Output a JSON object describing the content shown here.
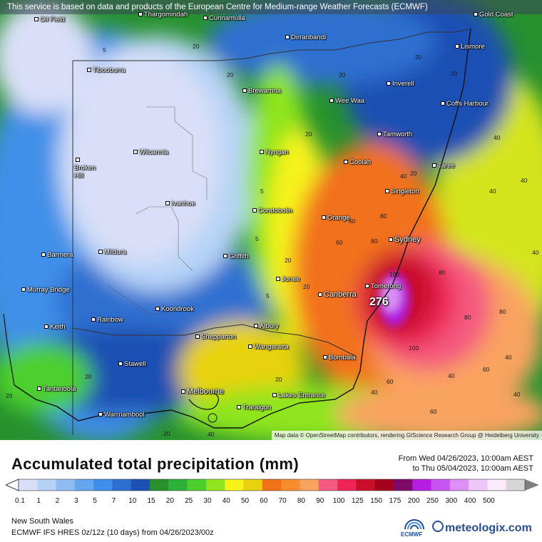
{
  "banner": "This service is based on data and products of the European Centre for Medium-range Weather Forecasts (ECMWF)",
  "attribution": "Map data © OpenStreetMap contributors, rendering GIScience Research Group @ Heidelberg University",
  "title": "Accumulated total precipitation (mm)",
  "date_from": "From Wed 04/26/2023, 10:00am AEST",
  "date_to": "to Thu 05/04/2023, 10:00am AEST",
  "region": "New South Wales",
  "model": "ECMWF IFS HRES 0z/12z (10 days) from 04/26/2023/00z",
  "brand_ecmwf": "ECMWF",
  "brand_site": "meteologix.com",
  "max_value": "276",
  "legend": {
    "labels": [
      "0.1",
      "1",
      "2",
      "3",
      "5",
      "7",
      "10",
      "15",
      "20",
      "25",
      "30",
      "40",
      "50",
      "60",
      "70",
      "80",
      "90",
      "100",
      "125",
      "150",
      "175",
      "200",
      "250",
      "300",
      "400",
      "500"
    ],
    "colors": [
      "#d9dff7",
      "#b6d3f7",
      "#8fbdf2",
      "#64a6ef",
      "#3f8fe8",
      "#2d6fd0",
      "#1e4fb3",
      "#27912e",
      "#2fb03a",
      "#4ecf2f",
      "#8fe51f",
      "#f7f31a",
      "#e8d10f",
      "#f2711b",
      "#f98c2f",
      "#f9a361",
      "#f45a7f",
      "#ec2555",
      "#c9102b",
      "#a5001e",
      "#7e0b6a",
      "#b31ee0",
      "#c754ee",
      "#dc8ff5",
      "#eec6fa",
      "#fbe9fd",
      "#d6d6d6"
    ]
  },
  "cities": [
    {
      "name": "Oil Field"
    },
    {
      "name": "Thargomindah"
    },
    {
      "name": "Cunnamulla"
    },
    {
      "name": "Gold Coast"
    },
    {
      "name": "Lismore"
    },
    {
      "name": "Dirranbandi"
    },
    {
      "name": "Tibooburra"
    },
    {
      "name": "Brewarrina"
    },
    {
      "name": "Inverell"
    },
    {
      "name": "Wee Waa"
    },
    {
      "name": "Coffs Harbour"
    },
    {
      "name": "Tamworth"
    },
    {
      "name": "Wilcannia"
    },
    {
      "name": "Nyngan"
    },
    {
      "name": "Coolah"
    },
    {
      "name": "Broken Hill"
    },
    {
      "name": "Taree"
    },
    {
      "name": "Singleton"
    },
    {
      "name": "Ivanhoe"
    },
    {
      "name": "Condobolin"
    },
    {
      "name": "Orange"
    },
    {
      "name": "Sydney"
    },
    {
      "name": "Barmera"
    },
    {
      "name": "Mildura"
    },
    {
      "name": "Griffith"
    },
    {
      "name": "Junee"
    },
    {
      "name": "Tomerong"
    },
    {
      "name": "Canberra"
    },
    {
      "name": "Murray Bridge"
    },
    {
      "name": "Koondrook"
    },
    {
      "name": "Rainbow"
    },
    {
      "name": "Keith"
    },
    {
      "name": "Shepparton"
    },
    {
      "name": "Albury"
    },
    {
      "name": "Wangaratta"
    },
    {
      "name": "Bombala"
    },
    {
      "name": "Stawell"
    },
    {
      "name": "Tantanoola"
    },
    {
      "name": "Melbourne"
    },
    {
      "name": "Lakes Entrance"
    },
    {
      "name": "Warrnambool"
    },
    {
      "name": "Traralgon"
    }
  ],
  "contour_values": [
    "5",
    "20",
    "20",
    "20",
    "20",
    "20",
    "20",
    "20",
    "40",
    "40",
    "40",
    "40",
    "40",
    "40",
    "5",
    "5",
    "5",
    "20",
    "20",
    "60",
    "60",
    "80",
    "80",
    "80",
    "80",
    "80",
    "100",
    "100",
    "40",
    "60",
    "60",
    "40",
    "20",
    "20",
    "20",
    "20",
    "40",
    "60",
    "40"
  ]
}
